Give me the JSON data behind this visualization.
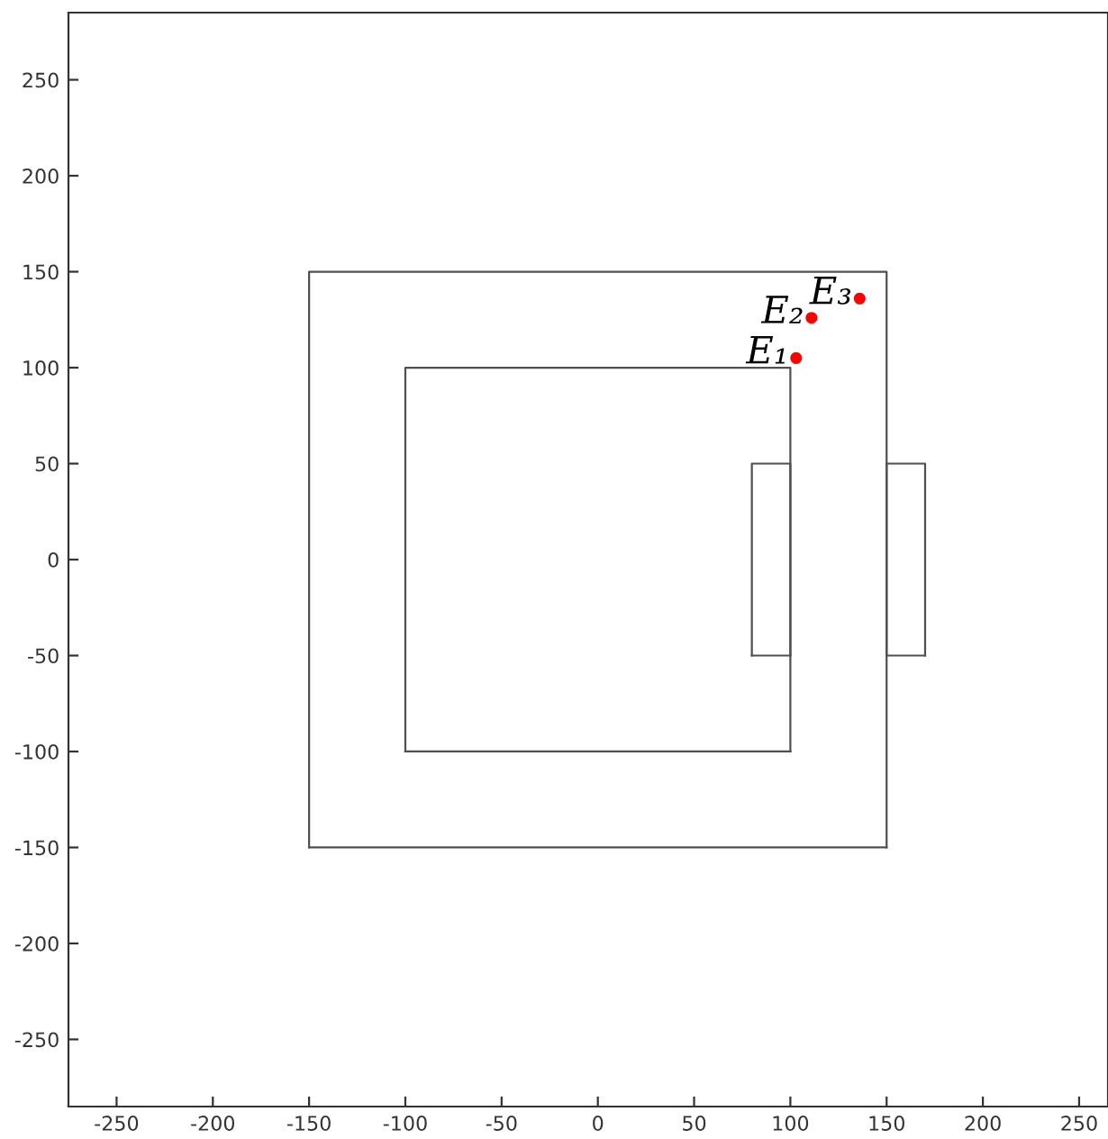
{
  "chart_data": {
    "type": "line",
    "xlim": [
      -275,
      265
    ],
    "ylim": [
      -285,
      285
    ],
    "xticks": [
      -250,
      -200,
      -150,
      -100,
      -50,
      0,
      50,
      100,
      150,
      200,
      250
    ],
    "yticks": [
      -250,
      -200,
      -150,
      -100,
      -50,
      0,
      50,
      100,
      150,
      200,
      250
    ],
    "grid": false,
    "legend": false,
    "marker": "none",
    "line_style": "solid",
    "series": [
      {
        "color": "#505050",
        "x": [
          -150,
          -150,
          150,
          150
        ],
        "values": [
          -150,
          150,
          150,
          -150
        ]
      },
      {
        "color": "#505050",
        "x": [
          -150,
          150
        ],
        "values": [
          -150,
          -150
        ]
      },
      {
        "color": "#505050",
        "x": [
          -100,
          -100,
          100,
          100
        ],
        "values": [
          -100,
          100,
          100,
          -100
        ]
      },
      {
        "color": "#505050",
        "x": [
          -100,
          100
        ],
        "values": [
          -100,
          -100
        ]
      },
      {
        "color": "#505050",
        "x": [
          80,
          80,
          100,
          100
        ],
        "values": [
          -50,
          50,
          50,
          -50
        ]
      },
      {
        "color": "#505050",
        "x": [
          80,
          100
        ],
        "values": [
          -50,
          -50
        ]
      },
      {
        "color": "#505050",
        "x": [
          150,
          150,
          170,
          170
        ],
        "values": [
          -50,
          50,
          50,
          -50
        ]
      },
      {
        "color": "#505050",
        "x": [
          150,
          170
        ],
        "values": [
          -50,
          -50
        ]
      },
      {
        "type": "scatter",
        "color": "#ff0000",
        "marker": "circle",
        "x": [
          103,
          111,
          136
        ],
        "values": [
          105,
          126,
          136
        ]
      }
    ],
    "annotations": [
      {
        "text": "E₁",
        "x": 103,
        "y": 105
      },
      {
        "text": "E₂",
        "x": 111,
        "y": 126
      },
      {
        "text": "E₃",
        "x": 136,
        "y": 136
      }
    ]
  }
}
